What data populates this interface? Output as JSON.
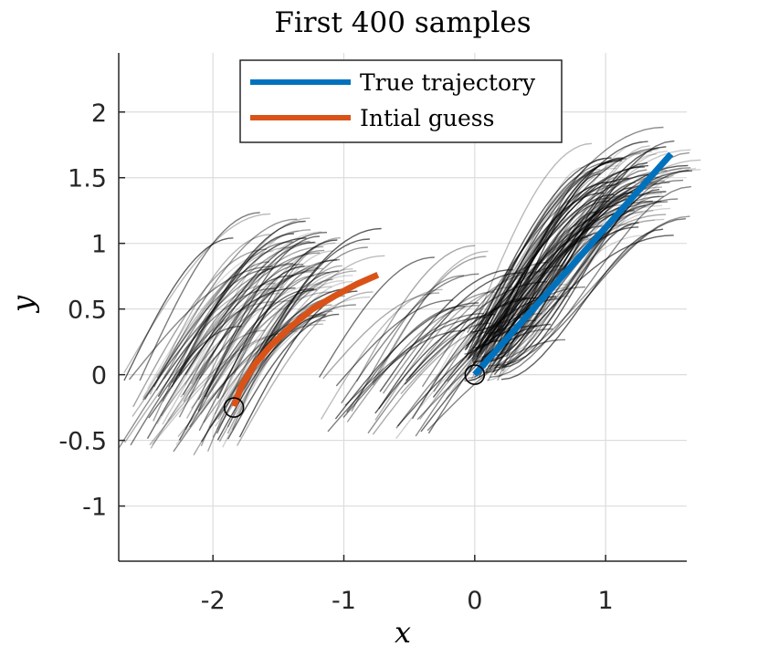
{
  "chart_data": {
    "type": "line",
    "title": "First 400 samples",
    "xlabel": "x",
    "ylabel": "y",
    "xlim": [
      -2.72,
      1.62
    ],
    "ylim": [
      -1.42,
      2.45
    ],
    "x_ticks": [
      -2,
      -1,
      0,
      1
    ],
    "x_tick_labels": [
      "-2",
      "-1",
      "0",
      "1"
    ],
    "y_ticks": [
      -1,
      -0.5,
      0,
      0.5,
      1,
      1.5,
      2
    ],
    "y_tick_labels": [
      "-1",
      "-0.5",
      "0",
      "0.5",
      "1",
      "1.5",
      "2"
    ],
    "grid": true,
    "legend_position": "top-center",
    "colors": {
      "true_trajectory": "#0072BD",
      "initial_guess": "#D95319",
      "samples": "#000000",
      "grid": "#dcdcdc",
      "axis": "#262626"
    },
    "series": [
      {
        "name": "True trajectory",
        "x": [
          0.0,
          0.25,
          0.5,
          0.75,
          1.0,
          1.25,
          1.5
        ],
        "y": [
          0.0,
          0.28,
          0.56,
          0.84,
          1.12,
          1.4,
          1.68
        ]
      },
      {
        "name": "Intial guess",
        "x": [
          -1.84,
          -1.78,
          -1.68,
          -1.55,
          -1.4,
          -1.24,
          -1.07,
          -0.9,
          -0.74
        ],
        "y": [
          -0.24,
          -0.08,
          0.08,
          0.23,
          0.37,
          0.5,
          0.6,
          0.69,
          0.76
        ]
      }
    ],
    "markers": [
      {
        "name": "start-true",
        "x": 0.0,
        "y": 0.0
      },
      {
        "name": "start-initial",
        "x": -1.84,
        "y": -0.25
      }
    ],
    "sample_bundles": [
      {
        "name": "initial-guess-samples",
        "start_x": [
          -2.72,
          -1.78
        ],
        "start_y": [
          -0.62,
          0.02
        ],
        "span_x": [
          0.8,
          1.2
        ],
        "rise": [
          0.85,
          1.3
        ],
        "count": 90
      },
      {
        "name": "middle-samples",
        "start_x": [
          -1.2,
          -0.2
        ],
        "start_y": [
          -0.5,
          0.0
        ],
        "span_x": [
          0.85,
          1.1
        ],
        "rise": [
          0.65,
          1.05
        ],
        "count": 45
      },
      {
        "name": "true-trajectory-samples",
        "start_x": [
          -0.08,
          0.22
        ],
        "start_y": [
          -0.05,
          0.35
        ],
        "span_x": [
          0.9,
          1.6
        ],
        "rise": [
          1.05,
          1.55
        ],
        "count": 110
      }
    ]
  }
}
